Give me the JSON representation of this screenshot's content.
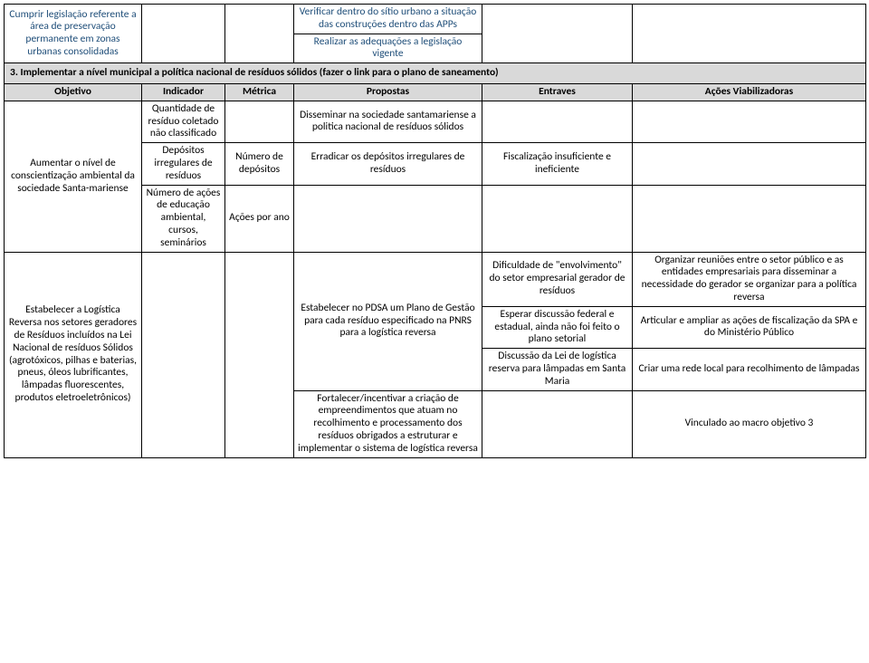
{
  "topRow": {
    "obj": "Cumprir legislação referente a área de preservação permanente em zonas urbanas consolidadas",
    "prop1": "Verificar dentro do sítio urbano a situação das construções dentro das APPs",
    "prop2": "Realizar as adequações a legislação vigente"
  },
  "section3": "3. Implementar a nível municipal a política nacional de resíduos sólidos (fazer o link para o plano de saneamento)",
  "headers": {
    "obj": "Objetivo",
    "ind": "Indicador",
    "met": "Métrica",
    "prop": "Propostas",
    "ent": "Entraves",
    "acc": "Ações Viabilizadoras"
  },
  "r1": {
    "ind": "Quantidade de resíduo coletado não classificado",
    "prop": "Disseminar na sociedade santamariense a politica nacional de resíduos sólidos"
  },
  "r2": {
    "obj": "Aumentar o nível de conscientização ambiental da sociedade Santa-mariense",
    "ind": "Depósitos irregulares de resíduos",
    "met": "Número de depósitos",
    "prop": "Erradicar os depósitos irregulares de resíduos",
    "ent": "Fiscalização insuficiente e ineficiente"
  },
  "r3": {
    "ind": "Número de ações de educação ambiental, cursos, seminários",
    "met": "Ações por ano"
  },
  "r4": {
    "obj": "Estabelecer a Logística Reversa nos setores geradores de Resíduos incluídos na Lei Nacional de resíduos Sólidos (agrotóxicos, pilhas e baterias, pneus, óleos lubrificantes, lâmpadas fluorescentes, produtos eletroeletrônicos)",
    "prop": "Estabelecer no PDSA um Plano de Gestão para cada resíduo especificado na PNRS para a logística reversa",
    "ent1": "Dificuldade de \"envolvimento\" do setor empresarial gerador de resíduos",
    "ent2": "Esperar discussão federal e estadual,  ainda não foi feito o plano setorial",
    "ent3": "Discussão da Lei de logística reserva para lâmpadas em Santa Maria",
    "acc1": "Organizar reuniões entre o setor público e as entidades empresariais para disseminar a necessidade do gerador se organizar para a política reversa",
    "acc2": "Articular e ampliar as ações de fiscalização da SPA e do Ministério Público",
    "acc3": "Criar uma rede local para recolhimento de lâmpadas"
  },
  "r5": {
    "prop": "Fortalecer/incentivar a criação de empreendimentos que atuam no recolhimento e processamento dos resíduos obrigados a estruturar e implementar o sistema de logística reversa",
    "acc": "Vinculado ao macro objetivo 3"
  }
}
